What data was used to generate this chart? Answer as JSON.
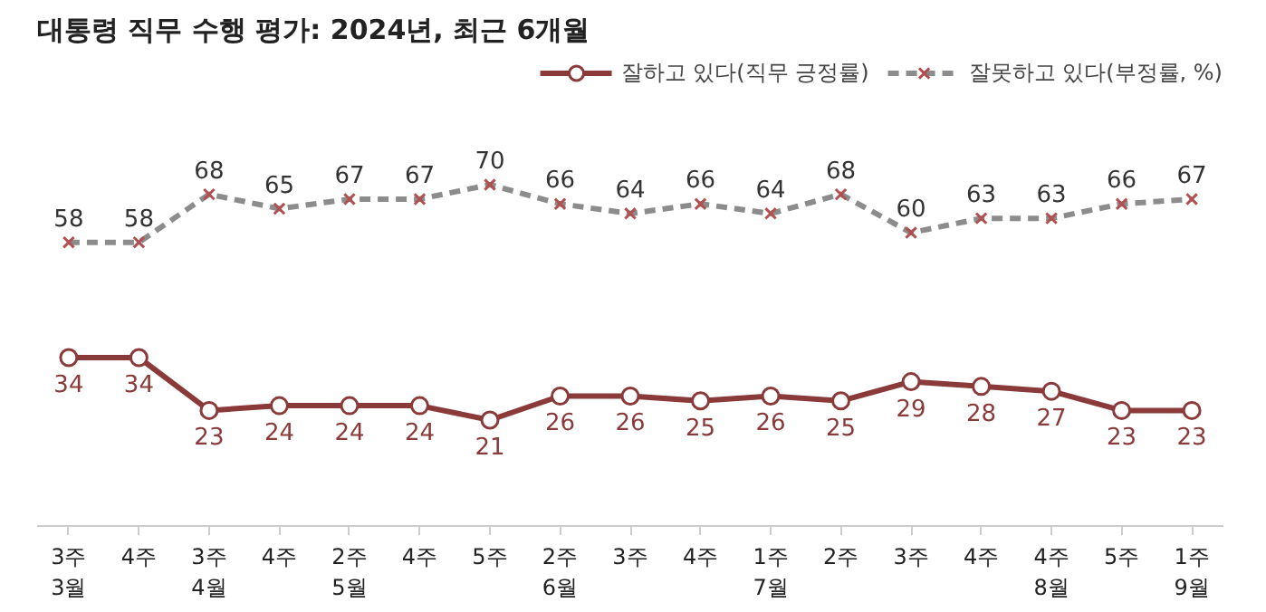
{
  "chart_data": {
    "type": "line",
    "title": "대통령 직무 수행 평가: 2024년, 최근 6개월",
    "categories": [
      "3주\n3월",
      "4주",
      "3주\n4월",
      "4주",
      "2주\n5월",
      "4주",
      "5주",
      "2주\n6월",
      "3주",
      "4주",
      "1주\n7월",
      "2주",
      "3주",
      "4주",
      "4주\n8월",
      "5주",
      "1주\n9월"
    ],
    "series": [
      {
        "name": "잘하고 있다(직무 긍정률)",
        "color": "#8b3a3a",
        "marker": "circle",
        "line_style": "solid",
        "values": [
          34,
          34,
          23,
          24,
          24,
          24,
          21,
          26,
          26,
          25,
          26,
          25,
          29,
          28,
          27,
          23,
          23
        ]
      },
      {
        "name": "잘못하고 있다(부정률, %)",
        "color": "#8c8c8c",
        "marker": "cross",
        "line_style": "dashed",
        "values": [
          58,
          58,
          68,
          65,
          67,
          67,
          70,
          66,
          64,
          66,
          64,
          68,
          60,
          63,
          63,
          66,
          67
        ]
      }
    ],
    "data_labels": true,
    "legend": "top right",
    "grid": false
  }
}
